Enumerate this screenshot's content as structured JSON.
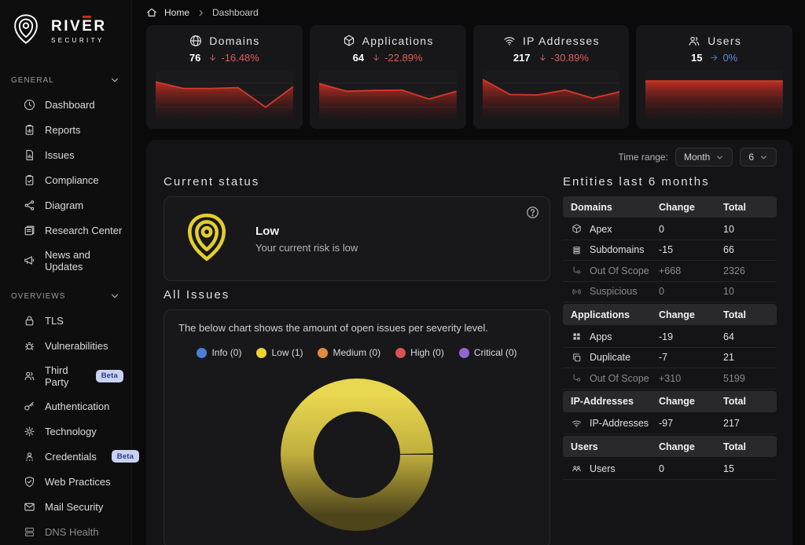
{
  "brand": {
    "name": "RIVER",
    "sub": "SECURITY"
  },
  "breadcrumb": {
    "home": "Home",
    "current": "Dashboard"
  },
  "sidebar": {
    "sections": [
      {
        "label": "GENERAL",
        "items": [
          {
            "icon": "clock",
            "label": "Dashboard"
          },
          {
            "icon": "report",
            "label": "Reports"
          },
          {
            "icon": "issues",
            "label": "Issues"
          },
          {
            "icon": "compliance",
            "label": "Compliance"
          },
          {
            "icon": "diagram",
            "label": "Diagram"
          },
          {
            "icon": "research",
            "label": "Research Center"
          },
          {
            "icon": "megaphone",
            "label": "News and Updates"
          }
        ]
      },
      {
        "label": "OVERVIEWS",
        "items": [
          {
            "icon": "lock",
            "label": "TLS"
          },
          {
            "icon": "bug",
            "label": "Vulnerabilities"
          },
          {
            "icon": "people",
            "label": "Third Party",
            "badge": "Beta"
          },
          {
            "icon": "key",
            "label": "Authentication"
          },
          {
            "icon": "gear",
            "label": "Technology"
          },
          {
            "icon": "credentials",
            "label": "Credentials",
            "badge": "Beta"
          },
          {
            "icon": "shield-check",
            "label": "Web Practices"
          },
          {
            "icon": "mail",
            "label": "Mail Security"
          },
          {
            "icon": "dns",
            "label": "DNS Health",
            "dimmed": true
          }
        ]
      }
    ]
  },
  "stat_cards": [
    {
      "icon": "globe",
      "title": "Domains",
      "value": "76",
      "change": "-16.48%",
      "trend": "down"
    },
    {
      "icon": "cube",
      "title": "Applications",
      "value": "64",
      "change": "-22.89%",
      "trend": "down"
    },
    {
      "icon": "wifi",
      "title": "IP Addresses",
      "value": "217",
      "change": "-30.89%",
      "trend": "down"
    },
    {
      "icon": "people",
      "title": "Users",
      "value": "15",
      "change": "0%",
      "trend": "flat"
    }
  ],
  "time_range": {
    "label": "Time range:",
    "unit": "Month",
    "count": "6"
  },
  "current_status": {
    "heading": "Current status",
    "level": "Low",
    "description": "Your current risk is low"
  },
  "all_issues": {
    "heading": "All Issues",
    "description": "The below chart shows the amount of open issues per severity level."
  },
  "entities": {
    "heading": "Entities last 6 months",
    "columns": [
      "Change",
      "Total"
    ],
    "sections": [
      {
        "name": "Domains",
        "rows": [
          {
            "icon": "cube",
            "label": "Apex",
            "change": "0",
            "total": "10"
          },
          {
            "icon": "stack",
            "label": "Subdomains",
            "change": "-15",
            "total": "66"
          },
          {
            "icon": "out-of-scope",
            "label": "Out Of Scope",
            "change": "+668",
            "total": "2326",
            "dimmed": true
          },
          {
            "icon": "signal",
            "label": "Suspicious",
            "change": "0",
            "total": "10",
            "dimmed": true
          }
        ]
      },
      {
        "name": "Applications",
        "rows": [
          {
            "icon": "apps",
            "label": "Apps",
            "change": "-19",
            "total": "64"
          },
          {
            "icon": "copy",
            "label": "Duplicate",
            "change": "-7",
            "total": "21"
          },
          {
            "icon": "out-of-scope",
            "label": "Out Of Scope",
            "change": "+310",
            "total": "5199",
            "dimmed": true
          }
        ]
      },
      {
        "name": "IP-Addresses",
        "rows": [
          {
            "icon": "wifi",
            "label": "IP-Addresses",
            "change": "-97",
            "total": "217"
          }
        ]
      },
      {
        "name": "Users",
        "rows": [
          {
            "icon": "group",
            "label": "Users",
            "change": "0",
            "total": "15"
          }
        ]
      }
    ]
  },
  "chart_data": [
    {
      "type": "area",
      "name": "domains-trend",
      "values": [
        86,
        70,
        70,
        72,
        24,
        74
      ],
      "ylim": [
        0,
        100
      ],
      "grid": true
    },
    {
      "type": "area",
      "name": "applications-trend",
      "values": [
        82,
        63,
        65,
        66,
        44,
        63
      ],
      "ylim": [
        0,
        100
      ],
      "grid": true
    },
    {
      "type": "area",
      "name": "ip-addresses-trend",
      "values": [
        92,
        55,
        54,
        66,
        46,
        62
      ],
      "ylim": [
        0,
        100
      ],
      "grid": true
    },
    {
      "type": "area",
      "name": "users-trend",
      "values": [
        88,
        88,
        88,
        88,
        88,
        88
      ],
      "ylim": [
        0,
        100
      ],
      "grid": true
    },
    {
      "type": "donut",
      "name": "open-issues-by-severity",
      "title": "All Issues",
      "labels": [
        "Info",
        "Low",
        "Medium",
        "High",
        "Critical"
      ],
      "values": [
        0,
        1,
        0,
        0,
        0
      ],
      "colors": [
        "#4a7fd6",
        "#f0d232",
        "#df8a3e",
        "#d95350",
        "#9168d0"
      ],
      "legend_position": "top"
    }
  ],
  "colors": {
    "down_red": "#e05c55",
    "flat_blue": "#5b8bd9",
    "spark_line": "#d9382a",
    "spark_fill_top": "rgba(198,48,36,0.95)",
    "spark_fill_bottom": "rgba(50,14,10,0.12)",
    "donut_top": "#e8d750",
    "donut_mid": "#bfae3d",
    "donut_bottom": "#4f451b"
  }
}
